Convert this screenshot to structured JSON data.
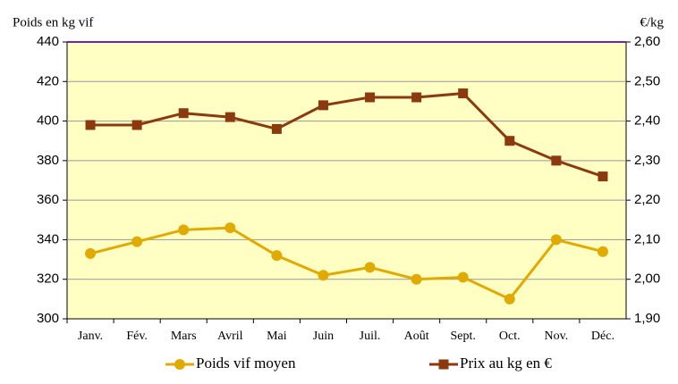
{
  "chart_data": {
    "type": "line",
    "y_label": "Poids en kg vif",
    "y2_label": "€/kg",
    "categories": [
      "Janv.",
      "Fév.",
      "Mars",
      "Avril",
      "Mai",
      "Juin",
      "Juil.",
      "Août",
      "Sept.",
      "Oct.",
      "Nov.",
      "Déc."
    ],
    "series": [
      {
        "name": "Poids vif moyen",
        "color": "#e0aa00",
        "marker": "circle",
        "values": [
          333,
          339,
          345,
          346,
          332,
          322,
          326,
          320,
          321,
          310,
          340,
          334
        ]
      },
      {
        "name": "Prix au kg en €",
        "color": "#8b3a10",
        "marker": "square",
        "axis": "y2",
        "values": [
          2.39,
          2.39,
          2.42,
          2.41,
          2.38,
          2.44,
          2.46,
          2.46,
          2.47,
          2.35,
          2.3,
          2.26
        ]
      }
    ],
    "ylim": [
      300,
      440
    ],
    "yticks": [
      300,
      320,
      340,
      360,
      380,
      400,
      420,
      440
    ],
    "y2lim": [
      1.9,
      2.6
    ],
    "y2ticks": [
      {
        "value": 1.9,
        "label": "1,90"
      },
      {
        "value": 2.0,
        "label": "2,00"
      },
      {
        "value": 2.1,
        "label": "2,10"
      },
      {
        "value": 2.2,
        "label": "2,20"
      },
      {
        "value": 2.3,
        "label": "2,30"
      },
      {
        "value": 2.4,
        "label": "2,40"
      },
      {
        "value": 2.5,
        "label": "2,50"
      },
      {
        "value": 2.6,
        "label": "2,60"
      }
    ],
    "grid": true,
    "legend": "bottom",
    "plot_background": "#ffffc4"
  }
}
